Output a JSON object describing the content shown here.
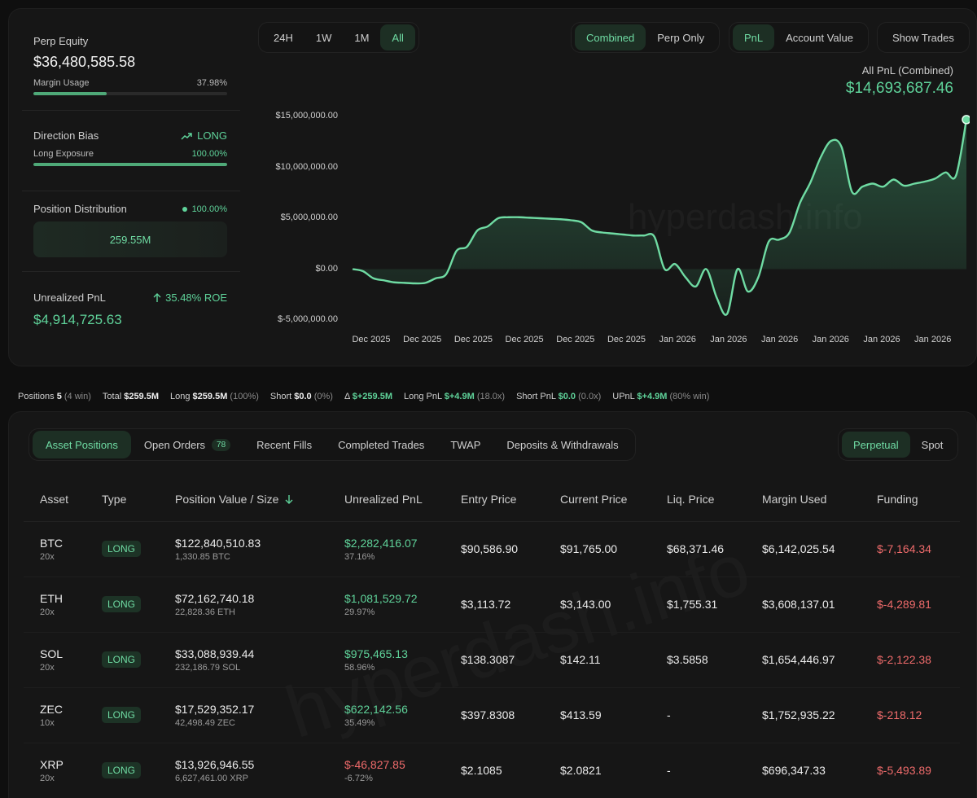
{
  "stats": {
    "perp_equity_label": "Perp Equity",
    "perp_equity_value": "$36,480,585.58",
    "margin_usage_label": "Margin Usage",
    "margin_usage_value": "37.98%",
    "margin_usage_fraction": 0.3798,
    "direction_bias_label": "Direction Bias",
    "direction_bias_value": "LONG",
    "long_exposure_label": "Long Exposure",
    "long_exposure_value": "100.00%",
    "long_exposure_fraction": 1.0,
    "position_distribution_label": "Position Distribution",
    "position_distribution_pct": "100.00%",
    "position_distribution_value": "259.55M",
    "unrealized_pnl_label": "Unrealized PnL",
    "unrealized_roe": "35.48% ROE",
    "unrealized_pnl_value": "$4,914,725.63"
  },
  "time_ranges": [
    "24H",
    "1W",
    "1M",
    "All"
  ],
  "time_range_active": "All",
  "mode_options": [
    "Combined",
    "Perp Only"
  ],
  "mode_active": "Combined",
  "metric_options": [
    "PnL",
    "Account Value"
  ],
  "metric_active": "PnL",
  "show_trades_label": "Show Trades",
  "chart_header": {
    "label": "All PnL (Combined)",
    "value": "$14,693,687.46"
  },
  "watermark": "hyperdash.info",
  "chart_data": {
    "type": "area",
    "title": "",
    "xlabel": "",
    "ylabel": "",
    "ylim": [
      -5000000,
      15000000
    ],
    "y_ticks": [
      15000000,
      10000000,
      5000000,
      0,
      -5000000
    ],
    "y_tick_labels": [
      "$15,000,000.00",
      "$10,000,000.00",
      "$5,000,000.00",
      "$0.00",
      "$-5,000,000.00"
    ],
    "x_tick_labels": [
      "Dec 2025",
      "Dec 2025",
      "Dec 2025",
      "Dec 2025",
      "Dec 2025",
      "Dec 2025",
      "Jan 2026",
      "Jan 2026",
      "Jan 2026",
      "Jan 2026",
      "Jan 2026",
      "Jan 2026"
    ],
    "x": [
      0,
      1,
      2,
      3,
      4,
      5,
      6,
      7,
      8,
      9,
      10,
      11,
      12,
      13,
      14,
      15,
      16,
      17,
      18,
      19,
      20,
      21,
      22,
      23,
      24,
      25,
      26,
      27,
      28,
      29,
      30,
      31,
      32,
      33,
      34,
      35,
      36,
      37,
      38,
      39,
      40,
      41,
      42,
      43,
      44,
      45,
      46,
      47,
      48,
      49,
      50,
      51,
      52,
      53,
      54,
      55,
      56,
      57,
      58,
      59
    ],
    "x_range": [
      0,
      59
    ],
    "series": [
      {
        "values": [
          0,
          -200000,
          -900000,
          -1100000,
          -1300000,
          -1350000,
          -1400000,
          -1350000,
          -900000,
          -500000,
          1800000,
          2200000,
          3800000,
          4200000,
          5000000,
          5100000,
          5100000,
          5050000,
          5000000,
          4950000,
          4900000,
          4800000,
          4600000,
          3800000,
          3600000,
          3500000,
          3400000,
          3300000,
          3300000,
          3200000,
          0,
          500000,
          -800000,
          -1700000,
          0,
          -2800000,
          -4400000,
          0,
          -2200000,
          -800000,
          2700000,
          2900000,
          3600000,
          6500000,
          8500000,
          11000000,
          12600000,
          12000000,
          7600000,
          8100000,
          8400000,
          8100000,
          8800000,
          8200000,
          8400000,
          8600000,
          8900000,
          9500000,
          9200000,
          14693687
        ]
      }
    ]
  },
  "summary": [
    {
      "label": "Positions",
      "value": "5",
      "extra": "(4 win)",
      "tone": "plain"
    },
    {
      "label": "Total",
      "value": "$259.5M",
      "extra": "",
      "tone": "plain"
    },
    {
      "label": "Long",
      "value": "$259.5M",
      "extra": "(100%)",
      "tone": "plain"
    },
    {
      "label": "Short",
      "value": "$0.0",
      "extra": "(0%)",
      "tone": "plain"
    },
    {
      "label": "Δ",
      "value": "$+259.5M",
      "extra": "",
      "tone": "green"
    },
    {
      "label": "Long PnL",
      "value": "$+4.9M",
      "extra": "(18.0x)",
      "tone": "green"
    },
    {
      "label": "Short PnL",
      "value": "$0.0",
      "extra": "(0.0x)",
      "tone": "green"
    },
    {
      "label": "UPnL",
      "value": "$+4.9M",
      "extra": "(80% win)",
      "tone": "green"
    }
  ],
  "tabs": [
    {
      "label": "Asset Positions",
      "active": true,
      "count": ""
    },
    {
      "label": "Open Orders",
      "active": false,
      "count": "78"
    },
    {
      "label": "Recent Fills",
      "active": false,
      "count": ""
    },
    {
      "label": "Completed Trades",
      "active": false,
      "count": ""
    },
    {
      "label": "TWAP",
      "active": false,
      "count": ""
    },
    {
      "label": "Deposits & Withdrawals",
      "active": false,
      "count": ""
    }
  ],
  "market_options": [
    "Perpetual",
    "Spot"
  ],
  "market_active": "Perpetual",
  "table": {
    "columns": [
      "Asset",
      "Type",
      "Position Value / Size",
      "Unrealized PnL",
      "Entry Price",
      "Current Price",
      "Liq. Price",
      "Margin Used",
      "Funding"
    ],
    "sort_icon": "arrow-down-icon",
    "rows": [
      {
        "asset": "BTC",
        "leverage": "20x",
        "type": "LONG",
        "value": "$122,840,510.83",
        "size": "1,330.85 BTC",
        "pnl": "$2,282,416.07",
        "pnl_pct": "37.16%",
        "pnl_tone": "green",
        "entry": "$90,586.90",
        "current": "$91,765.00",
        "liq": "$68,371.46",
        "margin": "$6,142,025.54",
        "funding": "$-7,164.34"
      },
      {
        "asset": "ETH",
        "leverage": "20x",
        "type": "LONG",
        "value": "$72,162,740.18",
        "size": "22,828.36 ETH",
        "pnl": "$1,081,529.72",
        "pnl_pct": "29.97%",
        "pnl_tone": "green",
        "entry": "$3,113.72",
        "current": "$3,143.00",
        "liq": "$1,755.31",
        "margin": "$3,608,137.01",
        "funding": "$-4,289.81"
      },
      {
        "asset": "SOL",
        "leverage": "20x",
        "type": "LONG",
        "value": "$33,088,939.44",
        "size": "232,186.79 SOL",
        "pnl": "$975,465.13",
        "pnl_pct": "58.96%",
        "pnl_tone": "green",
        "entry": "$138.3087",
        "current": "$142.11",
        "liq": "$3.5858",
        "margin": "$1,654,446.97",
        "funding": "$-2,122.38"
      },
      {
        "asset": "ZEC",
        "leverage": "10x",
        "type": "LONG",
        "value": "$17,529,352.17",
        "size": "42,498.49 ZEC",
        "pnl": "$622,142.56",
        "pnl_pct": "35.49%",
        "pnl_tone": "green",
        "entry": "$397.8308",
        "current": "$413.59",
        "liq": "-",
        "margin": "$1,752,935.22",
        "funding": "$-218.12"
      },
      {
        "asset": "XRP",
        "leverage": "20x",
        "type": "LONG",
        "value": "$13,926,946.55",
        "size": "6,627,461.00 XRP",
        "pnl": "$-46,827.85",
        "pnl_pct": "-6.72%",
        "pnl_tone": "red",
        "entry": "$2.1085",
        "current": "$2.0821",
        "liq": "-",
        "margin": "$696,347.33",
        "funding": "$-5,493.89"
      }
    ]
  },
  "colors": {
    "accent": "#5fd39a",
    "negative": "#ef6b6b",
    "active_bg": "#1d2f24"
  }
}
